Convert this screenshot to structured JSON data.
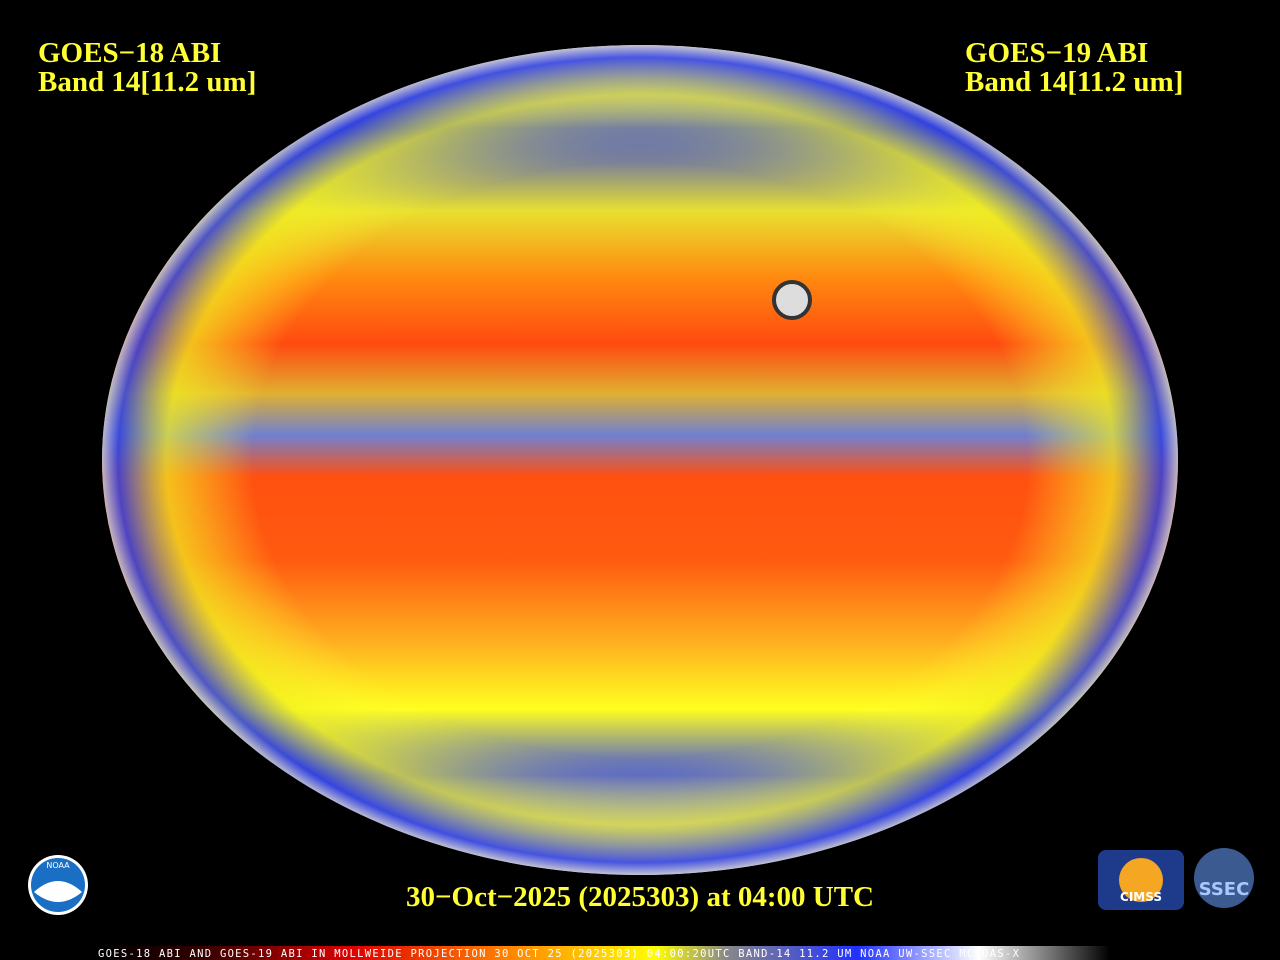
{
  "header": {
    "left": [
      "GOES−18 ABI",
      "Band 14[11.2 um]"
    ],
    "right": [
      "GOES−19 ABI",
      "Band 14[11.2 um]"
    ]
  },
  "caption": "30−Oct−2025 (2025303) at 04:00 UTC",
  "footer": "GOES-18 ABI AND GOES-19 ABI IN MOLLWEIDE PROJECTION 30 OCT 25 (2025303) 04:00:20UTC BAND-14 11.2 UM NOAA UW-SSEC MCIDAS-X",
  "logos": [
    "NOAA",
    "CIMSS",
    "SSEC"
  ]
}
